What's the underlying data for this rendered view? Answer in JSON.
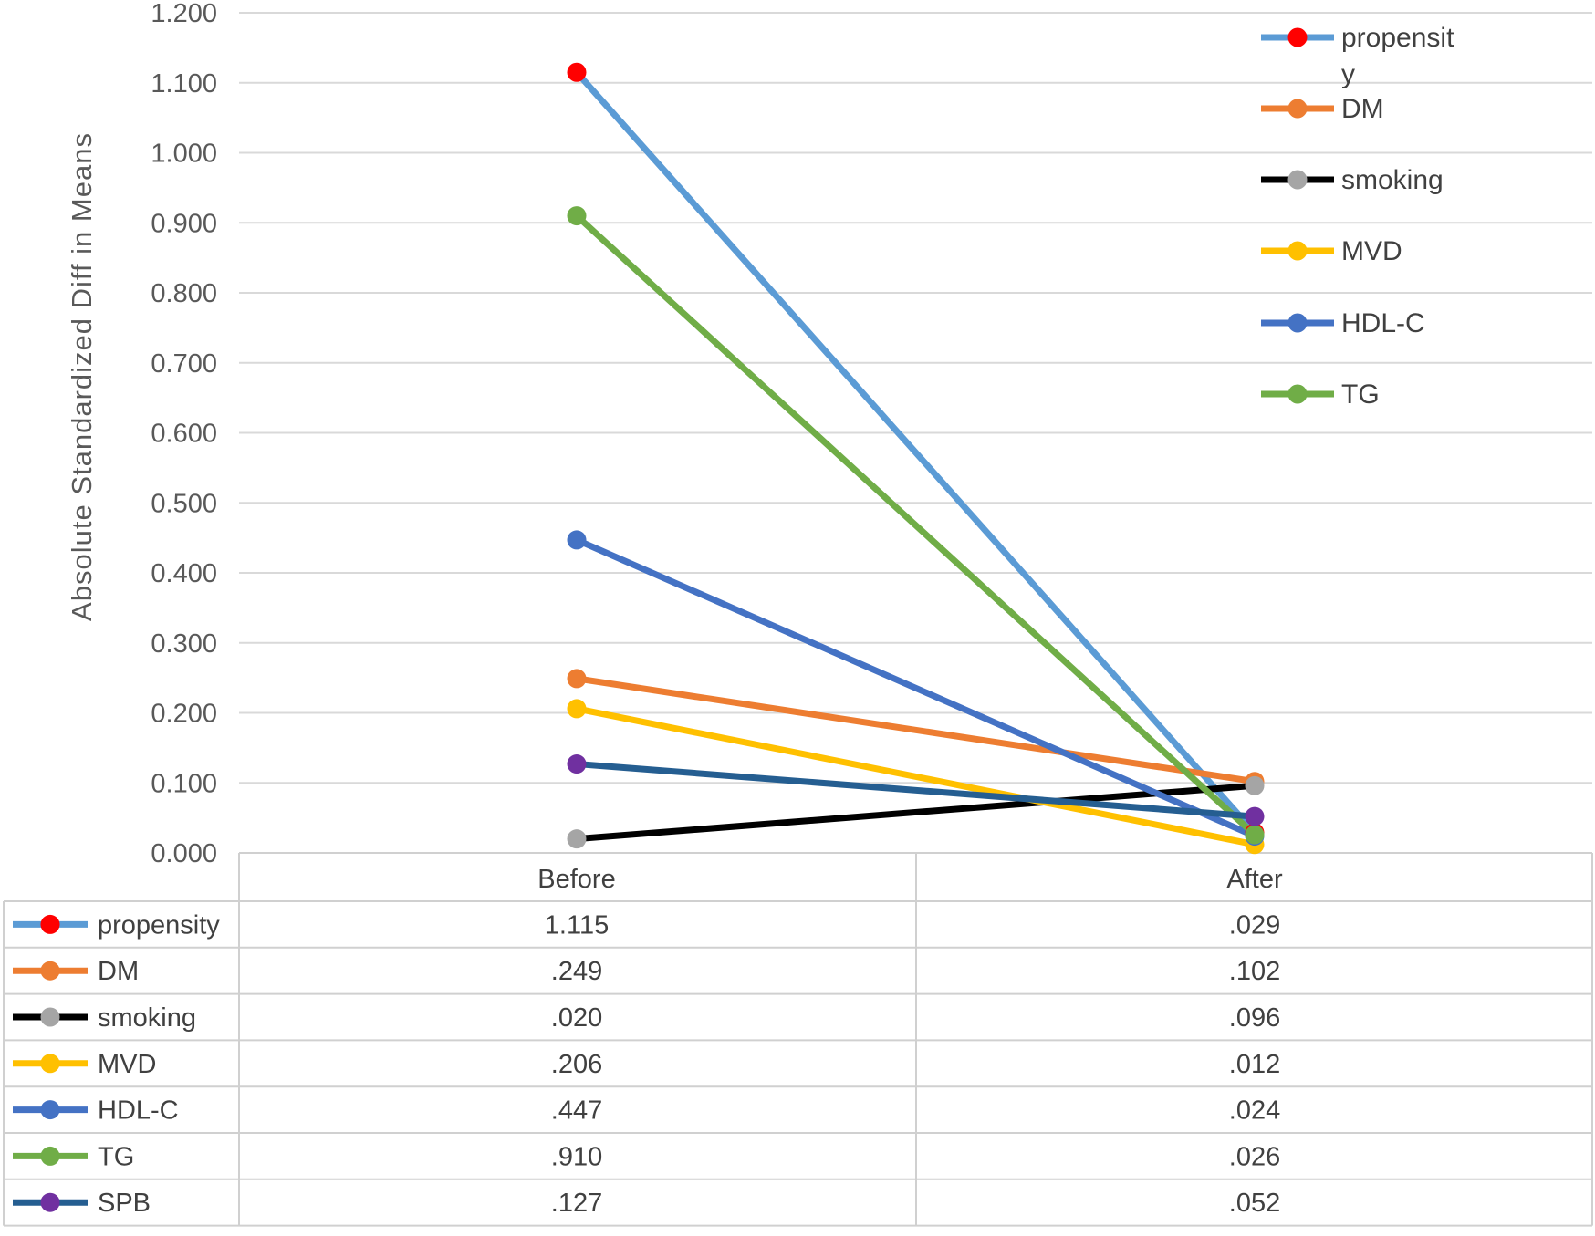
{
  "chart_data": {
    "type": "line",
    "ylabel": "Absolute  Standardized  Diff  in  Means",
    "xlabel": "",
    "title": "",
    "categories": [
      "Before",
      "After"
    ],
    "ylim": [
      0,
      1.2
    ],
    "y_ticks": [
      "0.000",
      "0.100",
      "0.200",
      "0.300",
      "0.400",
      "0.500",
      "0.600",
      "0.700",
      "0.800",
      "0.900",
      "1.000",
      "1.100",
      "1.200"
    ],
    "grid": true,
    "legend_position": "top-right",
    "series": [
      {
        "name": "propensity",
        "legend_label_lines": [
          "propensit",
          "y"
        ],
        "values": [
          1.115,
          0.029
        ],
        "display": [
          " 1.115",
          ".029"
        ],
        "line_color": "#5B9BD5",
        "marker_color": "#FF0000",
        "in_legend": true
      },
      {
        "name": "DM",
        "legend_label_lines": [
          "DM"
        ],
        "values": [
          0.249,
          0.102
        ],
        "display": [
          ".249",
          ".102"
        ],
        "line_color": "#ED7D31",
        "marker_color": "#ED7D31",
        "in_legend": true
      },
      {
        "name": "smoking",
        "legend_label_lines": [
          "smoking"
        ],
        "values": [
          0.02,
          0.096
        ],
        "display": [
          ".020",
          ".096"
        ],
        "line_color": "#000000",
        "marker_color": "#A5A5A5",
        "in_legend": true
      },
      {
        "name": "MVD",
        "legend_label_lines": [
          "MVD"
        ],
        "values": [
          0.206,
          0.012
        ],
        "display": [
          ".206",
          ".012"
        ],
        "line_color": "#FFC000",
        "marker_color": "#FFC000",
        "in_legend": true
      },
      {
        "name": "HDL-C",
        "legend_label_lines": [
          "HDL-C"
        ],
        "values": [
          0.447,
          0.024
        ],
        "display": [
          ".447",
          ".024"
        ],
        "line_color": "#4472C4",
        "marker_color": "#4472C4",
        "in_legend": true
      },
      {
        "name": "TG",
        "legend_label_lines": [
          "TG"
        ],
        "values": [
          0.91,
          0.026
        ],
        "display": [
          ".910",
          ".026"
        ],
        "line_color": "#70AD47",
        "marker_color": "#70AD47",
        "in_legend": true
      },
      {
        "name": "SPB",
        "legend_label_lines": [
          "SPB"
        ],
        "values": [
          0.127,
          0.052
        ],
        "display": [
          ".127",
          ".052"
        ],
        "line_color": "#255E91",
        "marker_color": "#7030A0",
        "in_legend": false
      }
    ]
  }
}
